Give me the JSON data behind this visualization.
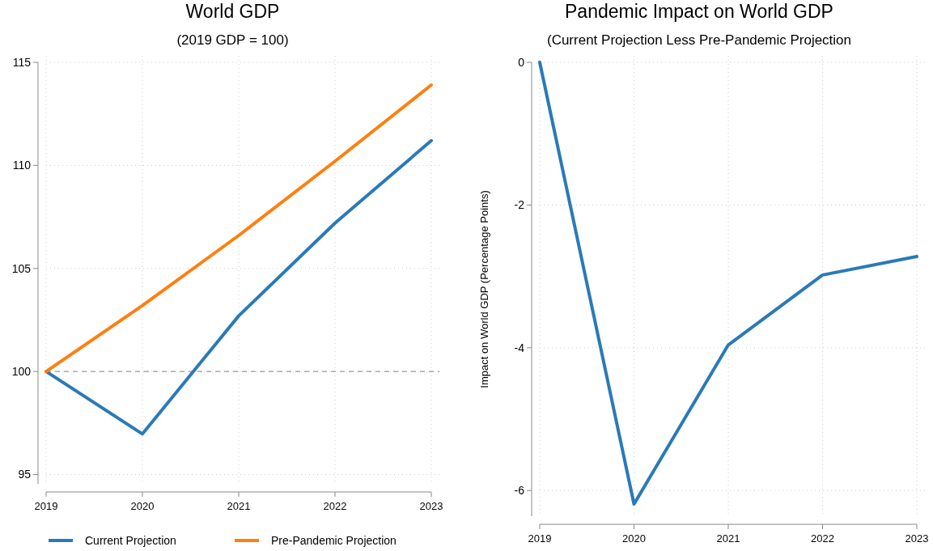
{
  "chart_data": [
    {
      "type": "line",
      "title": "World GDP",
      "subtitle": "(2019 GDP = 100)",
      "x": [
        2019,
        2020,
        2021,
        2022,
        2023
      ],
      "xlim": [
        2019,
        2023
      ],
      "xticks": [
        2019,
        2020,
        2021,
        2022,
        2023
      ],
      "ylim": [
        94.55,
        115
      ],
      "yticks": [
        95,
        100,
        105,
        110,
        115
      ],
      "grid": true,
      "legend": "bottom",
      "series": [
        {
          "name": "Current Projection",
          "color": "#2a7ab8",
          "values": [
            100,
            96.97,
            102.7,
            107.2,
            111.2
          ]
        },
        {
          "name": "Pre-Pandemic Projection",
          "color": "#ff7f0e",
          "values": [
            100,
            103.2,
            106.6,
            110.2,
            113.9
          ]
        }
      ],
      "ref_lines": [
        {
          "axis": "y",
          "value": 100,
          "color": "#999999",
          "line_style": "dashed"
        }
      ]
    },
    {
      "type": "line",
      "title": "Pandemic Impact on World GDP",
      "subtitle": "(Current Projection Less Pre-Pandemic Projection",
      "ylabel": "Impact on World GDP (Percentage Points)",
      "x": [
        2019,
        2020,
        2021,
        2022,
        2023
      ],
      "xlim": [
        2019,
        2023
      ],
      "xticks": [
        2019,
        2020,
        2021,
        2022,
        2023
      ],
      "ylim": [
        -6.36,
        0
      ],
      "yticks": [
        -6,
        -4,
        -2,
        0
      ],
      "grid": true,
      "series": [
        {
          "color": "#2a7ab8",
          "values": [
            0,
            -6.19,
            -3.96,
            -2.98,
            -2.72
          ]
        }
      ]
    }
  ]
}
